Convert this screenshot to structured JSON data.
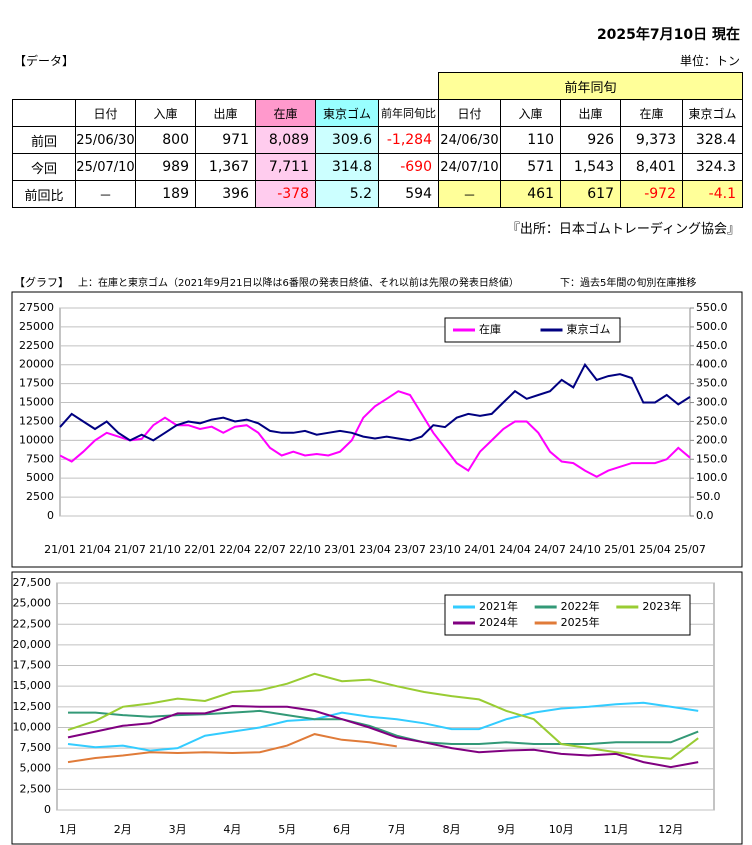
{
  "header": {
    "date": "2025年7月10日 現在",
    "section": "【データ】",
    "unit": "単位：トン"
  },
  "table": {
    "yoy_header": "前年同旬",
    "columns": [
      "日付",
      "入庫",
      "出庫",
      "在庫",
      "東京ゴム",
      "前年同旬比",
      "日付",
      "入庫",
      "出庫",
      "在庫",
      "東京ゴム"
    ],
    "rows": [
      [
        "前回",
        "25/06/30",
        "800",
        "971",
        "8,089",
        "309.6",
        "-1,284",
        "24/06/30",
        "110",
        "926",
        "9,373",
        "328.4"
      ],
      [
        "今回",
        "25/07/10",
        "989",
        "1,367",
        "7,711",
        "314.8",
        "-690",
        "24/07/10",
        "571",
        "1,543",
        "8,401",
        "324.3"
      ],
      [
        "前回比",
        "－",
        "189",
        "396",
        "-378",
        "5.2",
        "594",
        "－",
        "461",
        "617",
        "-972",
        "-4.1"
      ]
    ]
  },
  "source": "『出所：日本ゴムトレーディング協会』",
  "graph_label": {
    "title": "【グラフ】",
    "upper": "上：在庫と東京ゴム（2021年9月21日以降は6番限の発表日終値、それ以前は先限の発表日終値）",
    "lower": "下：過去5年間の旬別在庫推移"
  },
  "chart_data": [
    {
      "type": "line",
      "grid": true,
      "legend": "top-right",
      "categories": [
        "21/01",
        null,
        null,
        "21/04",
        null,
        null,
        "21/07",
        null,
        null,
        "21/10",
        null,
        null,
        "22/01",
        null,
        null,
        "22/04",
        null,
        null,
        "22/07",
        null,
        null,
        "22/10",
        null,
        null,
        "23/01",
        null,
        null,
        "23/04",
        null,
        null,
        "23/07",
        null,
        null,
        "23/10",
        null,
        null,
        "24/01",
        null,
        null,
        "24/04",
        null,
        null,
        "24/07",
        null,
        null,
        "24/10",
        null,
        null,
        "25/01",
        null,
        null,
        "25/04",
        null,
        null,
        "25/07"
      ],
      "ylim": [
        0,
        27500
      ],
      "yticks": [
        0,
        2500,
        5000,
        7500,
        10000,
        12500,
        15000,
        17500,
        20000,
        22500,
        25000,
        27500
      ],
      "y2lim": [
        0,
        550
      ],
      "y2ticks": [
        {
          "value": 0,
          "label": "0.0"
        },
        {
          "value": 50,
          "label": "50.0"
        },
        {
          "value": 100,
          "label": "100.0"
        },
        {
          "value": 150,
          "label": "150.0"
        },
        {
          "value": 200,
          "label": "200.0"
        },
        {
          "value": 250,
          "label": "250.0"
        },
        {
          "value": 300,
          "label": "300.0"
        },
        {
          "value": 350,
          "label": "350.0"
        },
        {
          "value": 400,
          "label": "400.0"
        },
        {
          "value": 450,
          "label": "450.0"
        },
        {
          "value": 500,
          "label": "500.0"
        },
        {
          "value": 550,
          "label": "550.0"
        }
      ],
      "series": [
        {
          "name": "在庫",
          "color": "#ff00ff",
          "values": [
            8000,
            7200,
            8500,
            10000,
            11000,
            10500,
            10000,
            10200,
            12000,
            13000,
            12000,
            12000,
            11500,
            11800,
            11000,
            11800,
            12000,
            11000,
            9000,
            8000,
            8500,
            8000,
            8200,
            8000,
            8500,
            10000,
            13000,
            14500,
            15500,
            16500,
            16000,
            13500,
            11000,
            9000,
            7000,
            6000,
            8500,
            10000,
            11500,
            12500,
            12500,
            11000,
            8500,
            7200,
            7000,
            6000,
            5200,
            6000,
            6500,
            7000,
            7000,
            7000,
            7500,
            9000,
            7711
          ]
        },
        {
          "name": "東京ゴム",
          "color": "#000080",
          "axis": "y2",
          "values": [
            235,
            270,
            250,
            230,
            250,
            220,
            200,
            215,
            200,
            220,
            240,
            250,
            245,
            255,
            260,
            250,
            255,
            245,
            225,
            220,
            220,
            225,
            215,
            220,
            225,
            220,
            210,
            205,
            210,
            205,
            200,
            210,
            240,
            235,
            260,
            270,
            265,
            270,
            300,
            330,
            310,
            320,
            330,
            360,
            340,
            400,
            360,
            370,
            375,
            365,
            300,
            300,
            320,
            295,
            314.8
          ]
        }
      ]
    },
    {
      "type": "line",
      "grid": true,
      "legend": "top-right",
      "categories": [
        "1月",
        null,
        "2月",
        null,
        "3月",
        null,
        "4月",
        null,
        "5月",
        null,
        "6月",
        null,
        "7月",
        null,
        "8月",
        null,
        "9月",
        null,
        "10月",
        null,
        "11月",
        null,
        "12月",
        null
      ],
      "ylim": [
        0,
        27500
      ],
      "yticks": [
        0,
        {
          "value": 2500,
          "label": "2,500"
        },
        {
          "value": 5000,
          "label": "5,000"
        },
        {
          "value": 7500,
          "label": "7,500"
        },
        {
          "value": 10000,
          "label": "10,000"
        },
        {
          "value": 12500,
          "label": "12,500"
        },
        {
          "value": 15000,
          "label": "15,000"
        },
        {
          "value": 17500,
          "label": "17,500"
        },
        {
          "value": 20000,
          "label": "20,000"
        },
        {
          "value": 22500,
          "label": "22,500"
        },
        {
          "value": 25000,
          "label": "25,000"
        },
        {
          "value": 27500,
          "label": "27,500"
        }
      ],
      "series": [
        {
          "name": "2021年",
          "color": "#33ccff",
          "values": [
            8000,
            7600,
            7800,
            7200,
            7500,
            9000,
            9500,
            10000,
            10800,
            11000,
            11800,
            11300,
            11000,
            10500,
            9800,
            9800,
            11000,
            11800,
            12300,
            12500,
            12800,
            13000,
            12500,
            12000
          ]
        },
        {
          "name": "2022年",
          "color": "#339977",
          "values": [
            11800,
            11800,
            11500,
            11300,
            11500,
            11600,
            11800,
            12000,
            11500,
            11000,
            11000,
            10200,
            9000,
            8200,
            8000,
            8000,
            8200,
            8000,
            8000,
            8000,
            8200,
            8200,
            8200,
            9500
          ]
        },
        {
          "name": "2023年",
          "color": "#99cc33",
          "values": [
            9700,
            10800,
            12500,
            12900,
            13500,
            13200,
            14300,
            14500,
            15300,
            16500,
            15600,
            15800,
            15000,
            14300,
            13800,
            13400,
            12000,
            11000,
            8000,
            7500,
            7000,
            6500,
            6200,
            8700
          ]
        },
        {
          "name": "2024年",
          "color": "#800080",
          "values": [
            8800,
            9500,
            10200,
            10500,
            11700,
            11700,
            12600,
            12500,
            12500,
            12000,
            11000,
            10000,
            8800,
            8200,
            7500,
            7000,
            7200,
            7300,
            6800,
            6600,
            6800,
            5800,
            5200,
            5800
          ]
        },
        {
          "name": "2025年",
          "color": "#e07b39",
          "values": [
            5800,
            6300,
            6600,
            7000,
            6900,
            7000,
            6900,
            7000,
            7800,
            9200,
            8500,
            8200,
            7700,
            null,
            null,
            null,
            null,
            null,
            null,
            null,
            null,
            null,
            null,
            null
          ]
        }
      ]
    }
  ]
}
